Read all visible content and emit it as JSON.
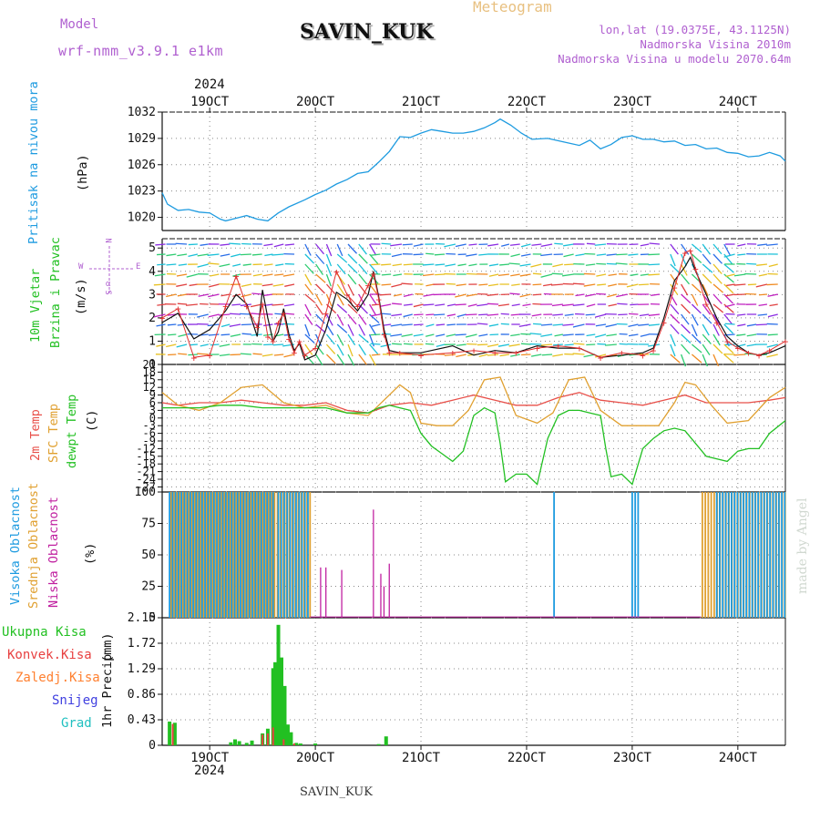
{
  "header": {
    "model_label": "Model",
    "model_name": "wrf-nmm_v3.9.1 e1km",
    "station": "SAVIN_KUK",
    "product": "Meteogram",
    "lonlat": "lon,lat (19.0375E, 43.1125N)",
    "altitude": "Nadmorska Visina 2010m",
    "model_altitude": "Nadmorska Visina u modelu 2070.64m",
    "year_top": "2024",
    "year_bottom": "2024",
    "footer_station": "SAVIN_KUK",
    "watermark": "made by Angel"
  },
  "wind_dirs": {
    "n": "N",
    "e": "E",
    "w": "W",
    "s": "S",
    "alpha": "α"
  },
  "colors": {
    "pressure": "#1e9be0",
    "wind_speed": "#111111",
    "wind_gust": "#e03030",
    "t2m": "#e8504a",
    "sfc": "#e0a030",
    "dew": "#22c022",
    "high_cloud": "#1e9be0",
    "mid_cloud": "#e0a030",
    "low_cloud": "#c020a0",
    "total_precip": "#22c022",
    "conv_precip": "#e84040",
    "frz_precip": "#ff8030",
    "snow": "#4040e0",
    "hail": "#20c0c0",
    "model_label": "#b060d0",
    "product_label": "#e8c080"
  },
  "chart_data": [
    {
      "type": "line",
      "panel": "pressure",
      "ylabel_parts": [
        "Pritisak na nivou mora",
        "(hPa)"
      ],
      "yticks": [
        "1032",
        "1029",
        "1026",
        "1023",
        "1020"
      ],
      "ylim": [
        1018.5,
        1032
      ],
      "xlim": [
        18.55,
        24.45
      ],
      "xticks": [
        "19OCT",
        "20OCT",
        "21OCT",
        "22OCT",
        "23OCT",
        "24OCT"
      ],
      "series": [
        {
          "name": "Pritisak na nivou mora",
          "x": [
            18.55,
            18.6,
            18.7,
            18.8,
            18.9,
            19.0,
            19.1,
            19.15,
            19.25,
            19.35,
            19.45,
            19.55,
            19.65,
            19.75,
            19.9,
            20.0,
            20.1,
            20.2,
            20.3,
            20.4,
            20.5,
            20.6,
            20.7,
            20.8,
            20.9,
            21.0,
            21.1,
            21.2,
            21.3,
            21.4,
            21.5,
            21.6,
            21.7,
            21.75,
            21.85,
            21.95,
            22.05,
            22.2,
            22.35,
            22.5,
            22.6,
            22.7,
            22.8,
            22.9,
            23.0,
            23.1,
            23.2,
            23.3,
            23.4,
            23.5,
            23.6,
            23.7,
            23.8,
            23.9,
            24.0,
            24.1,
            24.2,
            24.3,
            24.4,
            24.45
          ],
          "y": [
            1022.8,
            1021.5,
            1020.8,
            1020.9,
            1020.6,
            1020.5,
            1019.8,
            1019.6,
            1019.9,
            1020.2,
            1019.8,
            1019.6,
            1020.5,
            1021.2,
            1022.0,
            1022.6,
            1023.1,
            1023.8,
            1024.3,
            1025.0,
            1025.2,
            1026.3,
            1027.5,
            1029.2,
            1029.1,
            1029.6,
            1030.0,
            1029.8,
            1029.6,
            1029.6,
            1029.8,
            1030.2,
            1030.8,
            1031.2,
            1030.5,
            1029.6,
            1028.9,
            1029.0,
            1028.6,
            1028.2,
            1028.8,
            1027.8,
            1028.3,
            1029.1,
            1029.3,
            1028.9,
            1028.9,
            1028.6,
            1028.7,
            1028.2,
            1028.3,
            1027.8,
            1027.9,
            1027.4,
            1027.3,
            1026.9,
            1027.0,
            1027.4,
            1027.0,
            1026.4
          ]
        }
      ]
    },
    {
      "type": "line",
      "panel": "wind",
      "ylabel_parts": [
        "10m Vjetar",
        "Brzina i Pravac",
        "(m/s)"
      ],
      "yticks": [
        "5",
        "4",
        "3",
        "2",
        "1",
        "0"
      ],
      "ylim": [
        0,
        5.4
      ],
      "series": [
        {
          "name": "wind speed",
          "x": [
            18.55,
            18.7,
            18.85,
            19.0,
            19.15,
            19.25,
            19.35,
            19.45,
            19.5,
            19.55,
            19.6,
            19.65,
            19.7,
            19.75,
            19.8,
            19.85,
            19.9,
            20.0,
            20.1,
            20.2,
            20.3,
            20.4,
            20.5,
            20.55,
            20.6,
            20.65,
            20.7,
            20.8,
            21.0,
            21.3,
            21.5,
            21.7,
            21.9,
            22.1,
            22.3,
            22.5,
            22.7,
            22.9,
            23.1,
            23.2,
            23.3,
            23.4,
            23.5,
            23.55,
            23.6,
            23.7,
            23.8,
            23.9,
            24.0,
            24.1,
            24.2,
            24.3,
            24.45
          ],
          "y": [
            1.8,
            2.2,
            1.1,
            1.5,
            2.3,
            3.0,
            2.6,
            1.2,
            3.2,
            2.0,
            1.0,
            1.4,
            2.4,
            1.3,
            0.6,
            0.9,
            0.2,
            0.4,
            1.5,
            3.1,
            2.8,
            2.3,
            3.0,
            4.0,
            2.9,
            1.5,
            0.6,
            0.5,
            0.5,
            0.8,
            0.4,
            0.6,
            0.5,
            0.8,
            0.7,
            0.7,
            0.3,
            0.4,
            0.5,
            0.7,
            2.0,
            3.6,
            4.2,
            4.6,
            4.0,
            3.0,
            2.0,
            1.2,
            0.8,
            0.5,
            0.4,
            0.5,
            0.8
          ]
        },
        {
          "name": "gust",
          "x": [
            18.55,
            18.7,
            18.85,
            19.0,
            19.15,
            19.25,
            19.35,
            19.45,
            19.5,
            19.55,
            19.6,
            19.65,
            19.7,
            19.75,
            19.8,
            19.85,
            19.9,
            20.0,
            20.1,
            20.2,
            20.3,
            20.4,
            20.5,
            20.55,
            20.6,
            20.65,
            20.7,
            20.8,
            21.0,
            21.3,
            21.5,
            21.7,
            21.9,
            22.1,
            22.3,
            22.5,
            22.7,
            22.9,
            23.1,
            23.2,
            23.3,
            23.4,
            23.5,
            23.55,
            23.6,
            23.7,
            23.8,
            23.9,
            24.0,
            24.1,
            24.2,
            24.3,
            24.45
          ],
          "y": [
            2.0,
            2.4,
            0.3,
            0.4,
            2.5,
            3.8,
            2.5,
            1.6,
            2.6,
            1.2,
            1.0,
            1.8,
            2.2,
            1.1,
            0.5,
            1.0,
            0.4,
            0.7,
            2.2,
            4.0,
            3.0,
            2.5,
            3.4,
            3.9,
            2.8,
            1.3,
            0.5,
            0.5,
            0.4,
            0.5,
            0.6,
            0.5,
            0.5,
            0.7,
            0.8,
            0.7,
            0.3,
            0.5,
            0.4,
            0.6,
            1.8,
            3.3,
            4.8,
            4.9,
            4.1,
            2.6,
            1.8,
            1.0,
            0.7,
            0.5,
            0.4,
            0.6,
            1.0
          ]
        }
      ]
    },
    {
      "type": "line",
      "panel": "temperature",
      "ylabel_parts": [
        "2m Temp",
        "SFC Temp",
        "dewpt Temp",
        "(C)"
      ],
      "yticks": [
        "21",
        "18",
        "15",
        "12",
        "9",
        "6",
        "3",
        "0",
        "-3",
        "-6",
        "-9",
        "-12",
        "-15",
        "-18",
        "-21",
        "-24",
        "-27"
      ],
      "ylim": [
        -29,
        21
      ],
      "series": [
        {
          "name": "2m Temp",
          "x": [
            18.55,
            18.7,
            18.9,
            19.1,
            19.3,
            19.5,
            19.7,
            19.9,
            20.1,
            20.3,
            20.5,
            20.7,
            20.9,
            21.1,
            21.3,
            21.5,
            21.7,
            21.9,
            22.1,
            22.3,
            22.5,
            22.7,
            22.9,
            23.1,
            23.3,
            23.5,
            23.7,
            23.9,
            24.1,
            24.3,
            24.45
          ],
          "y": [
            6,
            5,
            6,
            6,
            7,
            6,
            5,
            5,
            6,
            3,
            2,
            5,
            6,
            5,
            7,
            9,
            7,
            5,
            5,
            8,
            10,
            7,
            6,
            5,
            7,
            9,
            6,
            6,
            6,
            7,
            8
          ]
        },
        {
          "name": "SFC Temp",
          "x": [
            18.55,
            18.7,
            18.9,
            19.1,
            19.3,
            19.5,
            19.7,
            19.9,
            20.1,
            20.3,
            20.5,
            20.65,
            20.8,
            20.9,
            21.0,
            21.15,
            21.3,
            21.45,
            21.6,
            21.75,
            21.9,
            22.1,
            22.25,
            22.4,
            22.55,
            22.7,
            22.9,
            23.1,
            23.25,
            23.4,
            23.5,
            23.6,
            23.75,
            23.9,
            24.1,
            24.3,
            24.45
          ],
          "y": [
            10,
            5,
            3,
            6,
            12,
            13,
            6,
            4,
            5,
            2,
            1,
            7,
            13,
            10,
            -2,
            -3,
            -3,
            3,
            15,
            16,
            1,
            -2,
            2,
            15,
            16,
            3,
            -3,
            -3,
            -3,
            6,
            14,
            13,
            5,
            -2,
            -1,
            8,
            12
          ]
        },
        {
          "name": "dewpt Temp",
          "x": [
            18.55,
            18.7,
            18.9,
            19.1,
            19.3,
            19.5,
            19.7,
            19.9,
            20.1,
            20.3,
            20.5,
            20.6,
            20.7,
            20.8,
            20.9,
            21.0,
            21.1,
            21.2,
            21.3,
            21.4,
            21.5,
            21.6,
            21.7,
            21.75,
            21.8,
            21.9,
            22.0,
            22.1,
            22.2,
            22.3,
            22.4,
            22.5,
            22.6,
            22.7,
            22.75,
            22.8,
            22.9,
            23.0,
            23.1,
            23.2,
            23.3,
            23.4,
            23.5,
            23.6,
            23.7,
            23.8,
            23.9,
            24.0,
            24.1,
            24.2,
            24.3,
            24.45
          ],
          "y": [
            4,
            4,
            4,
            5,
            5,
            4,
            4,
            4,
            4,
            2,
            2,
            4,
            5,
            4,
            3,
            -6,
            -11,
            -14,
            -17,
            -13,
            1,
            4,
            2,
            -10,
            -25,
            -22,
            -22,
            -26,
            -8,
            1,
            3,
            3,
            2,
            1,
            -12,
            -23,
            -22,
            -26,
            -12,
            -8,
            -5,
            -4,
            -5,
            -10,
            -15,
            -16,
            -17,
            -13,
            -12,
            -12,
            -6,
            -1
          ]
        }
      ]
    },
    {
      "type": "bar",
      "panel": "cloud",
      "ylabel_parts": [
        "Visoka Oblacnost",
        "Srednja Oblacnost",
        "Niska Oblacnost",
        "(%)"
      ],
      "yticks": [
        "100",
        "75",
        "50",
        "25",
        "0"
      ],
      "ylim": [
        0,
        100
      ],
      "series": [
        {
          "name": "Visoka Oblacnost",
          "spans": [
            [
              18.62,
              19.6
            ],
            [
              19.65,
              19.95
            ]
          ],
          "extra": [
            [
              22.26,
              22.28
            ],
            [
              23.0,
              23.07
            ],
            [
              23.8,
              24.45
            ]
          ],
          "level": 100
        },
        {
          "name": "Srednja Oblacnost",
          "spans": [
            [
              18.62,
              19.95
            ],
            [
              23.65,
              24.45
            ]
          ],
          "level": 100
        },
        {
          "name": "Niska Oblacnost",
          "x": [
            20.05,
            20.1,
            20.25,
            20.55,
            20.62,
            20.65,
            20.7
          ],
          "y": [
            40,
            40,
            38,
            86,
            35,
            25,
            43
          ]
        }
      ]
    },
    {
      "type": "bar",
      "panel": "precip",
      "ylabel_parts": [
        "1hr Precip",
        "(mm)"
      ],
      "yticks": [
        "2.15",
        "1.72",
        "1.29",
        "0.86",
        "0.43",
        "0"
      ],
      "ylim": [
        0,
        2.15
      ],
      "series": [
        {
          "name": "Ukupna Kisa",
          "x": [
            18.62,
            18.67,
            19.2,
            19.24,
            19.28,
            19.35,
            19.4,
            19.5,
            19.55,
            19.6,
            19.62,
            19.65,
            19.68,
            19.71,
            19.74,
            19.77,
            19.82,
            19.86,
            20.0,
            20.6,
            20.67
          ],
          "y": [
            0.4,
            0.38,
            0.05,
            0.1,
            0.07,
            0.04,
            0.08,
            0.2,
            0.28,
            1.3,
            1.4,
            2.03,
            1.48,
            1.0,
            0.35,
            0.22,
            0.04,
            0.03,
            0.03,
            0.02,
            0.15
          ]
        },
        {
          "name": "Konvek.Kisa",
          "x": [
            18.65,
            19.5,
            19.55,
            19.6,
            19.7,
            19.8
          ],
          "y": [
            0.36,
            0.18,
            0.2,
            0.3,
            0.1,
            0.03
          ]
        }
      ],
      "legend": [
        "Ukupna Kisa",
        "Konvek.Kisa",
        "Zaledj.Kisa",
        "Snijeg",
        "Grad"
      ]
    }
  ]
}
